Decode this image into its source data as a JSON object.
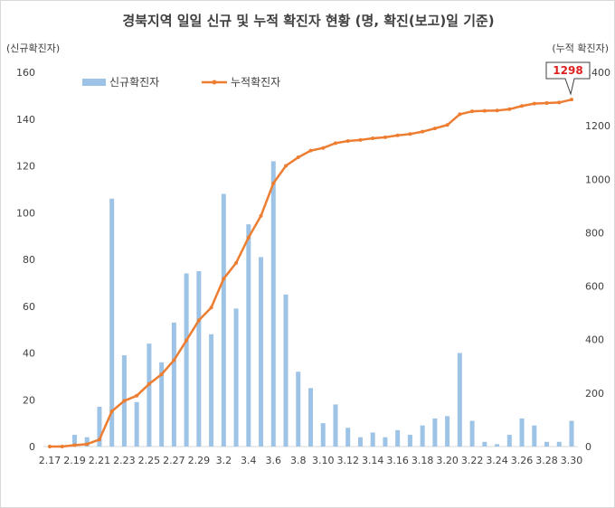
{
  "chart_data": {
    "type": "bar+line",
    "title": "경북지역 일일 신규 및 누적 확진자 현황 (명, 확진(보고)일 기준)",
    "y_left_label": "(신규확진자)",
    "y_right_label": "(누적 확진자)",
    "y_left_lim": [
      0,
      160
    ],
    "y_left_ticks": [
      0,
      20,
      40,
      60,
      80,
      100,
      120,
      140,
      160
    ],
    "y_right_lim": [
      0,
      1400
    ],
    "y_right_ticks": [
      0,
      200,
      400,
      600,
      800,
      1000,
      1200,
      1400
    ],
    "x_tick_labels": [
      "2.17",
      "2.19",
      "2.21",
      "2.23",
      "2.25",
      "2.27",
      "2.29",
      "3.2",
      "3.4",
      "3.6",
      "3.8",
      "3.10",
      "3.12",
      "3.14",
      "3.16",
      "3.18",
      "3.20",
      "3.22",
      "3.24",
      "3.26",
      "3.28",
      "3.30"
    ],
    "dates": [
      "2.17",
      "2.18",
      "2.19",
      "2.20",
      "2.21",
      "2.22",
      "2.23",
      "2.24",
      "2.25",
      "2.26",
      "2.27",
      "2.28",
      "2.29",
      "3.1",
      "3.2",
      "3.3",
      "3.4",
      "3.5",
      "3.6",
      "3.7",
      "3.8",
      "3.9",
      "3.10",
      "3.11",
      "3.12",
      "3.13",
      "3.14",
      "3.15",
      "3.16",
      "3.17",
      "3.18",
      "3.19",
      "3.20",
      "3.21",
      "3.22",
      "3.23",
      "3.24",
      "3.25",
      "3.26",
      "3.27",
      "3.28",
      "3.29",
      "3.30"
    ],
    "series": [
      {
        "name": "신규확진자",
        "type": "bar",
        "axis": "left",
        "color": "#9dc3e6",
        "values": [
          0,
          0,
          5,
          4,
          17,
          106,
          39,
          19,
          44,
          36,
          53,
          74,
          75,
          48,
          108,
          59,
          95,
          81,
          122,
          65,
          32,
          25,
          10,
          18,
          8,
          4,
          6,
          4,
          7,
          5,
          9,
          12,
          13,
          40,
          11,
          2,
          1,
          5,
          12,
          9,
          2,
          2,
          11
        ]
      },
      {
        "name": "누적확진자",
        "type": "line",
        "axis": "right",
        "color": "#ed7d31",
        "values": [
          0,
          0,
          5,
          9,
          26,
          132,
          171,
          190,
          234,
          270,
          323,
          397,
          472,
          520,
          628,
          687,
          782,
          863,
          985,
          1050,
          1082,
          1107,
          1117,
          1135,
          1143,
          1147,
          1153,
          1157,
          1164,
          1169,
          1178,
          1190,
          1203,
          1243,
          1254,
          1256,
          1257,
          1262,
          1274,
          1283,
          1285,
          1287,
          1298
        ]
      }
    ],
    "callout": {
      "text": "1298",
      "date": "3.30",
      "value": 1298
    },
    "legend_position": "top-left",
    "grid": false
  }
}
